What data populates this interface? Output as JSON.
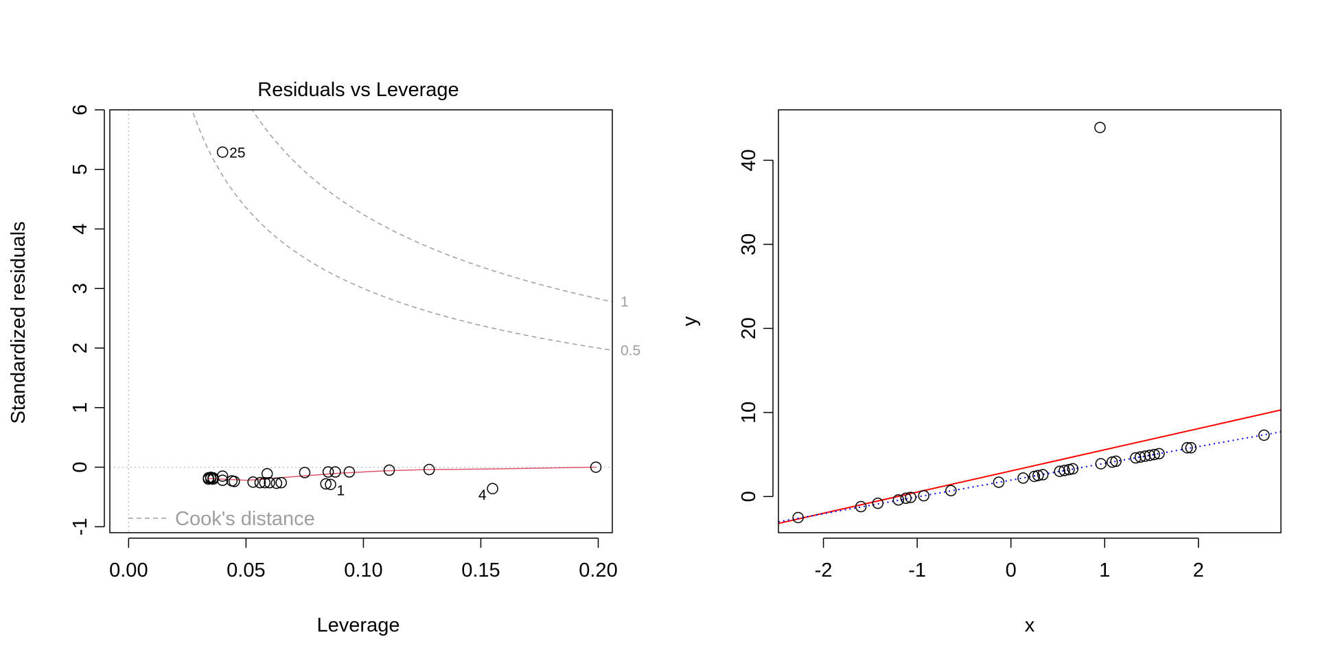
{
  "chart_data": [
    {
      "type": "scatter",
      "title": "Residuals vs Leverage",
      "xlabel": "Leverage",
      "ylabel": "Standardized residuals",
      "xlim": [
        -0.008,
        0.206
      ],
      "ylim": [
        -1.1,
        6.0
      ],
      "xticks": [
        0.0,
        0.05,
        0.1,
        0.15,
        0.2
      ],
      "xtick_labels": [
        "0.00",
        "0.05",
        "0.10",
        "0.15",
        "0.20"
      ],
      "yticks": [
        -1,
        0,
        1,
        2,
        3,
        4,
        5,
        6
      ],
      "ytick_labels": [
        "-1",
        "0",
        "1",
        "2",
        "3",
        "4",
        "5",
        "6"
      ],
      "points": [
        {
          "x": 0.034,
          "y": -0.18
        },
        {
          "x": 0.034,
          "y": -0.2
        },
        {
          "x": 0.035,
          "y": -0.17
        },
        {
          "x": 0.035,
          "y": -0.19
        },
        {
          "x": 0.036,
          "y": -0.2
        },
        {
          "x": 0.036,
          "y": -0.18
        },
        {
          "x": 0.04,
          "y": -0.15
        },
        {
          "x": 0.04,
          "y": -0.22
        },
        {
          "x": 0.044,
          "y": -0.23
        },
        {
          "x": 0.045,
          "y": -0.24
        },
        {
          "x": 0.053,
          "y": -0.25
        },
        {
          "x": 0.056,
          "y": -0.26
        },
        {
          "x": 0.059,
          "y": -0.11
        },
        {
          "x": 0.058,
          "y": -0.26
        },
        {
          "x": 0.06,
          "y": -0.26
        },
        {
          "x": 0.063,
          "y": -0.27
        },
        {
          "x": 0.065,
          "y": -0.26
        },
        {
          "x": 0.075,
          "y": -0.09
        },
        {
          "x": 0.084,
          "y": -0.28
        },
        {
          "x": 0.085,
          "y": -0.08
        },
        {
          "x": 0.086,
          "y": -0.29
        },
        {
          "x": 0.088,
          "y": -0.08
        },
        {
          "x": 0.094,
          "y": -0.08
        },
        {
          "x": 0.111,
          "y": -0.05
        },
        {
          "x": 0.128,
          "y": -0.04
        },
        {
          "x": 0.155,
          "y": -0.36
        },
        {
          "x": 0.199,
          "y": 0.0
        },
        {
          "x": 0.04,
          "y": 5.29
        }
      ],
      "point_labels": [
        {
          "text": "25",
          "x": 0.04,
          "y": 5.29,
          "side": "right"
        },
        {
          "text": "1",
          "x": 0.086,
          "y": -0.29,
          "side": "below-right"
        },
        {
          "text": "4",
          "x": 0.155,
          "y": -0.36,
          "side": "below-left"
        }
      ],
      "smoother": {
        "color": "#df536b",
        "x": [
          0.034,
          0.04,
          0.045,
          0.05,
          0.055,
          0.06,
          0.07,
          0.08,
          0.09,
          0.1,
          0.11,
          0.128,
          0.155,
          0.199
        ],
        "y": [
          -0.19,
          -0.2,
          -0.21,
          -0.22,
          -0.21,
          -0.19,
          -0.16,
          -0.13,
          -0.1,
          -0.08,
          -0.06,
          -0.04,
          -0.03,
          0.0
        ]
      },
      "cooks_contours": [
        {
          "level_label": "1",
          "level": 1.0,
          "n_params": 2,
          "color": "#9e9e9e"
        },
        {
          "level_label": "0.5",
          "level": 0.5,
          "n_params": 2,
          "color": "#9e9e9e"
        }
      ],
      "reference_lines": {
        "h": 0,
        "v": 0,
        "color": "#bebebe"
      },
      "legend": {
        "text": "Cook's distance",
        "position": "bottom-left",
        "color": "#9e9e9e"
      }
    },
    {
      "type": "scatter",
      "title": "",
      "xlabel": "x",
      "ylabel": "y",
      "xlim": [
        -2.48,
        2.88
      ],
      "ylim": [
        -4.3,
        46.0
      ],
      "xticks": [
        -2,
        -1,
        0,
        1,
        2
      ],
      "xtick_labels": [
        "-2",
        "-1",
        "0",
        "1",
        "2"
      ],
      "yticks": [
        0,
        10,
        20,
        30,
        40
      ],
      "ytick_labels": [
        "0",
        "10",
        "20",
        "30",
        "40"
      ],
      "points": [
        {
          "x": -2.27,
          "y": -2.5
        },
        {
          "x": -1.6,
          "y": -1.2
        },
        {
          "x": -1.42,
          "y": -0.8
        },
        {
          "x": -1.2,
          "y": -0.4
        },
        {
          "x": -1.12,
          "y": -0.2
        },
        {
          "x": -1.07,
          "y": -0.1
        },
        {
          "x": -0.93,
          "y": 0.1
        },
        {
          "x": -0.64,
          "y": 0.7
        },
        {
          "x": -0.13,
          "y": 1.7
        },
        {
          "x": 0.13,
          "y": 2.2
        },
        {
          "x": 0.25,
          "y": 2.4
        },
        {
          "x": 0.29,
          "y": 2.5
        },
        {
          "x": 0.34,
          "y": 2.6
        },
        {
          "x": 0.52,
          "y": 3.0
        },
        {
          "x": 0.57,
          "y": 3.1
        },
        {
          "x": 0.62,
          "y": 3.2
        },
        {
          "x": 0.66,
          "y": 3.3
        },
        {
          "x": 0.96,
          "y": 3.9
        },
        {
          "x": 1.08,
          "y": 4.1
        },
        {
          "x": 1.12,
          "y": 4.2
        },
        {
          "x": 1.33,
          "y": 4.6
        },
        {
          "x": 1.38,
          "y": 4.7
        },
        {
          "x": 1.43,
          "y": 4.8
        },
        {
          "x": 1.48,
          "y": 4.9
        },
        {
          "x": 1.53,
          "y": 5.0
        },
        {
          "x": 1.58,
          "y": 5.1
        },
        {
          "x": 1.88,
          "y": 5.8
        },
        {
          "x": 1.92,
          "y": 5.8
        },
        {
          "x": 2.7,
          "y": 7.3
        },
        {
          "x": 0.95,
          "y": 43.9
        }
      ],
      "lines": [
        {
          "name": "",
          "color": "#ff0000",
          "style": "solid",
          "x": [
            -2.48,
            2.88
          ],
          "y": [
            -3.2,
            10.3
          ]
        },
        {
          "name": "",
          "color": "#0000ff",
          "style": "dotted",
          "x": [
            -2.48,
            2.88
          ],
          "y": [
            -3.0,
            7.7
          ]
        }
      ]
    }
  ]
}
